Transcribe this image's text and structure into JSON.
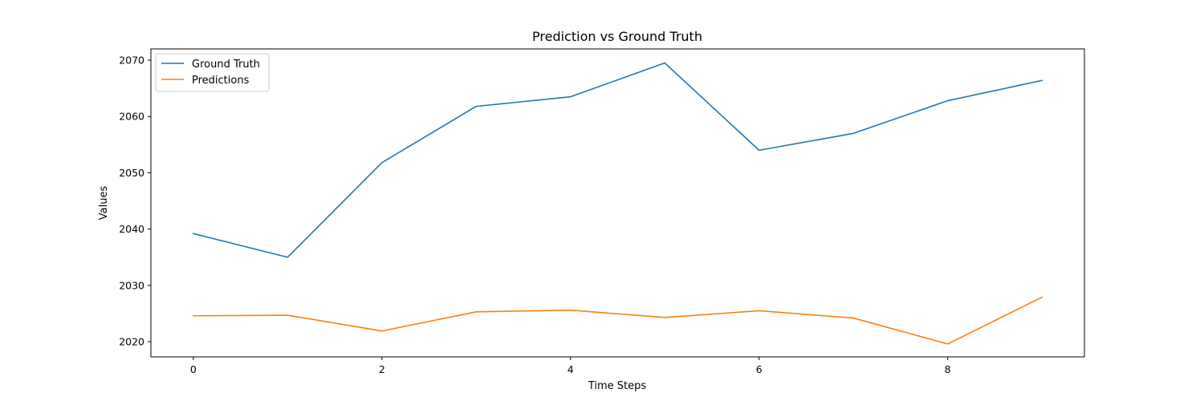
{
  "chart_data": {
    "type": "line",
    "title": "Prediction vs Ground Truth",
    "xlabel": "Time Steps",
    "ylabel": "Values",
    "x": [
      0,
      1,
      2,
      3,
      4,
      5,
      6,
      7,
      8,
      9
    ],
    "xlim": [
      -0.45,
      9.45
    ],
    "ylim": [
      2017.3,
      2072.0
    ],
    "xticks": [
      0,
      2,
      4,
      6,
      8
    ],
    "yticks": [
      2020,
      2030,
      2040,
      2050,
      2060,
      2070
    ],
    "grid": false,
    "legend_position": "top-left",
    "series": [
      {
        "name": "Ground Truth",
        "color": "#1f77b4",
        "values": [
          2039.2,
          2035.0,
          2051.8,
          2061.8,
          2063.5,
          2069.5,
          2054.0,
          2057.0,
          2062.8,
          2066.4
        ]
      },
      {
        "name": "Predictions",
        "color": "#ff7f0e",
        "values": [
          2024.6,
          2024.7,
          2021.9,
          2025.3,
          2025.6,
          2024.3,
          2025.5,
          2024.2,
          2019.6,
          2027.9
        ]
      }
    ]
  }
}
